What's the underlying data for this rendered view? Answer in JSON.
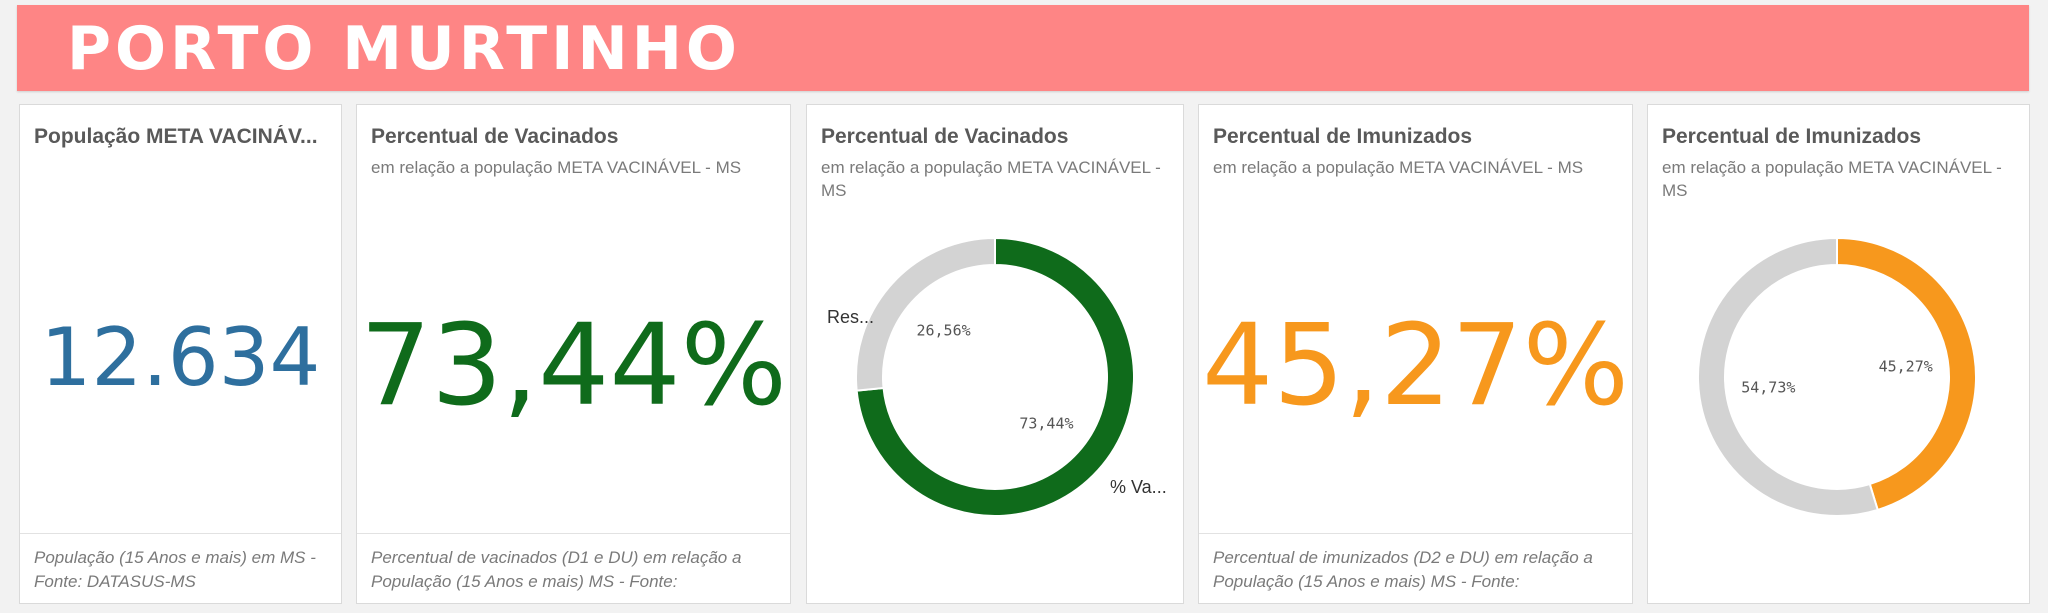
{
  "banner": {
    "title": "PORTO MURTINHO",
    "color": "#fe8585"
  },
  "panels": [
    {
      "title": "População META VACINÁV...",
      "kpi": "12.634",
      "kpi_color": "#2e6f9e",
      "footnote": "População (15 Anos e mais) em MS - Fonte: DATASUS-MS"
    },
    {
      "title": "Percentual de Vacinados",
      "subtitle": "em relação a população META VACINÁVEL - MS",
      "kpi": "73,44%",
      "kpi_color": "#0f6b1b",
      "footnote": "Percentual de vacinados (D1 e DU) em relação a População (15 Anos e mais) MS - Fonte:"
    },
    {
      "title": "Percentual de Vacinados",
      "subtitle": "em relação a população META VACINÁVEL - MS",
      "label_remaining": "Res...",
      "label_primary": "% Va..."
    },
    {
      "title": "Percentual de Imunizados",
      "subtitle": "em relação a população META VACINÁVEL - MS",
      "kpi": "45,27%",
      "kpi_color": "#f7981d",
      "footnote": "Percentual de imunizados (D2 e DU) em relação a População (15 Anos e mais) MS - Fonte:"
    },
    {
      "title": "Percentual de Imunizados",
      "subtitle": "em relação a população META VACINÁVEL - MS"
    }
  ],
  "chart_data": [
    {
      "type": "pie",
      "variant": "donut",
      "categories": [
        "% Va...",
        "Res..."
      ],
      "values": [
        73.44,
        26.56
      ],
      "value_labels": [
        "73,44%",
        "26,56%"
      ],
      "colors": [
        "#0f6b1b",
        "#d3d3d3"
      ]
    },
    {
      "type": "pie",
      "variant": "donut",
      "values": [
        45.27,
        54.73
      ],
      "value_labels": [
        "45,27%",
        "54,73%"
      ],
      "colors": [
        "#f7981d",
        "#d3d3d3"
      ]
    }
  ]
}
